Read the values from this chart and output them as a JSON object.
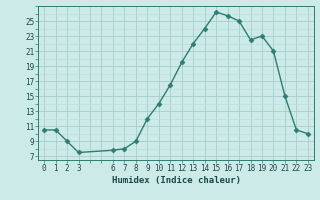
{
  "x": [
    0,
    1,
    2,
    3,
    6,
    7,
    8,
    9,
    10,
    11,
    12,
    13,
    14,
    15,
    16,
    17,
    18,
    19,
    20,
    21,
    22,
    23
  ],
  "y": [
    10.5,
    10.5,
    9.0,
    7.5,
    7.8,
    8.0,
    9.0,
    12.0,
    14.0,
    16.5,
    19.5,
    22.0,
    24.0,
    26.2,
    25.7,
    25.0,
    22.5,
    23.0,
    21.0,
    15.0,
    10.5,
    10.0
  ],
  "line_color": "#2e7d72",
  "marker_color": "#2e7d72",
  "bg_color": "#cceae8",
  "grid_major_color": "#aacccc",
  "grid_minor_color": "#bbdddd",
  "xlabel": "Humidex (Indice chaleur)",
  "xlim": [
    -0.5,
    23.5
  ],
  "ylim": [
    6.5,
    27
  ],
  "yticks": [
    7,
    9,
    11,
    13,
    15,
    17,
    19,
    21,
    23,
    25
  ]
}
